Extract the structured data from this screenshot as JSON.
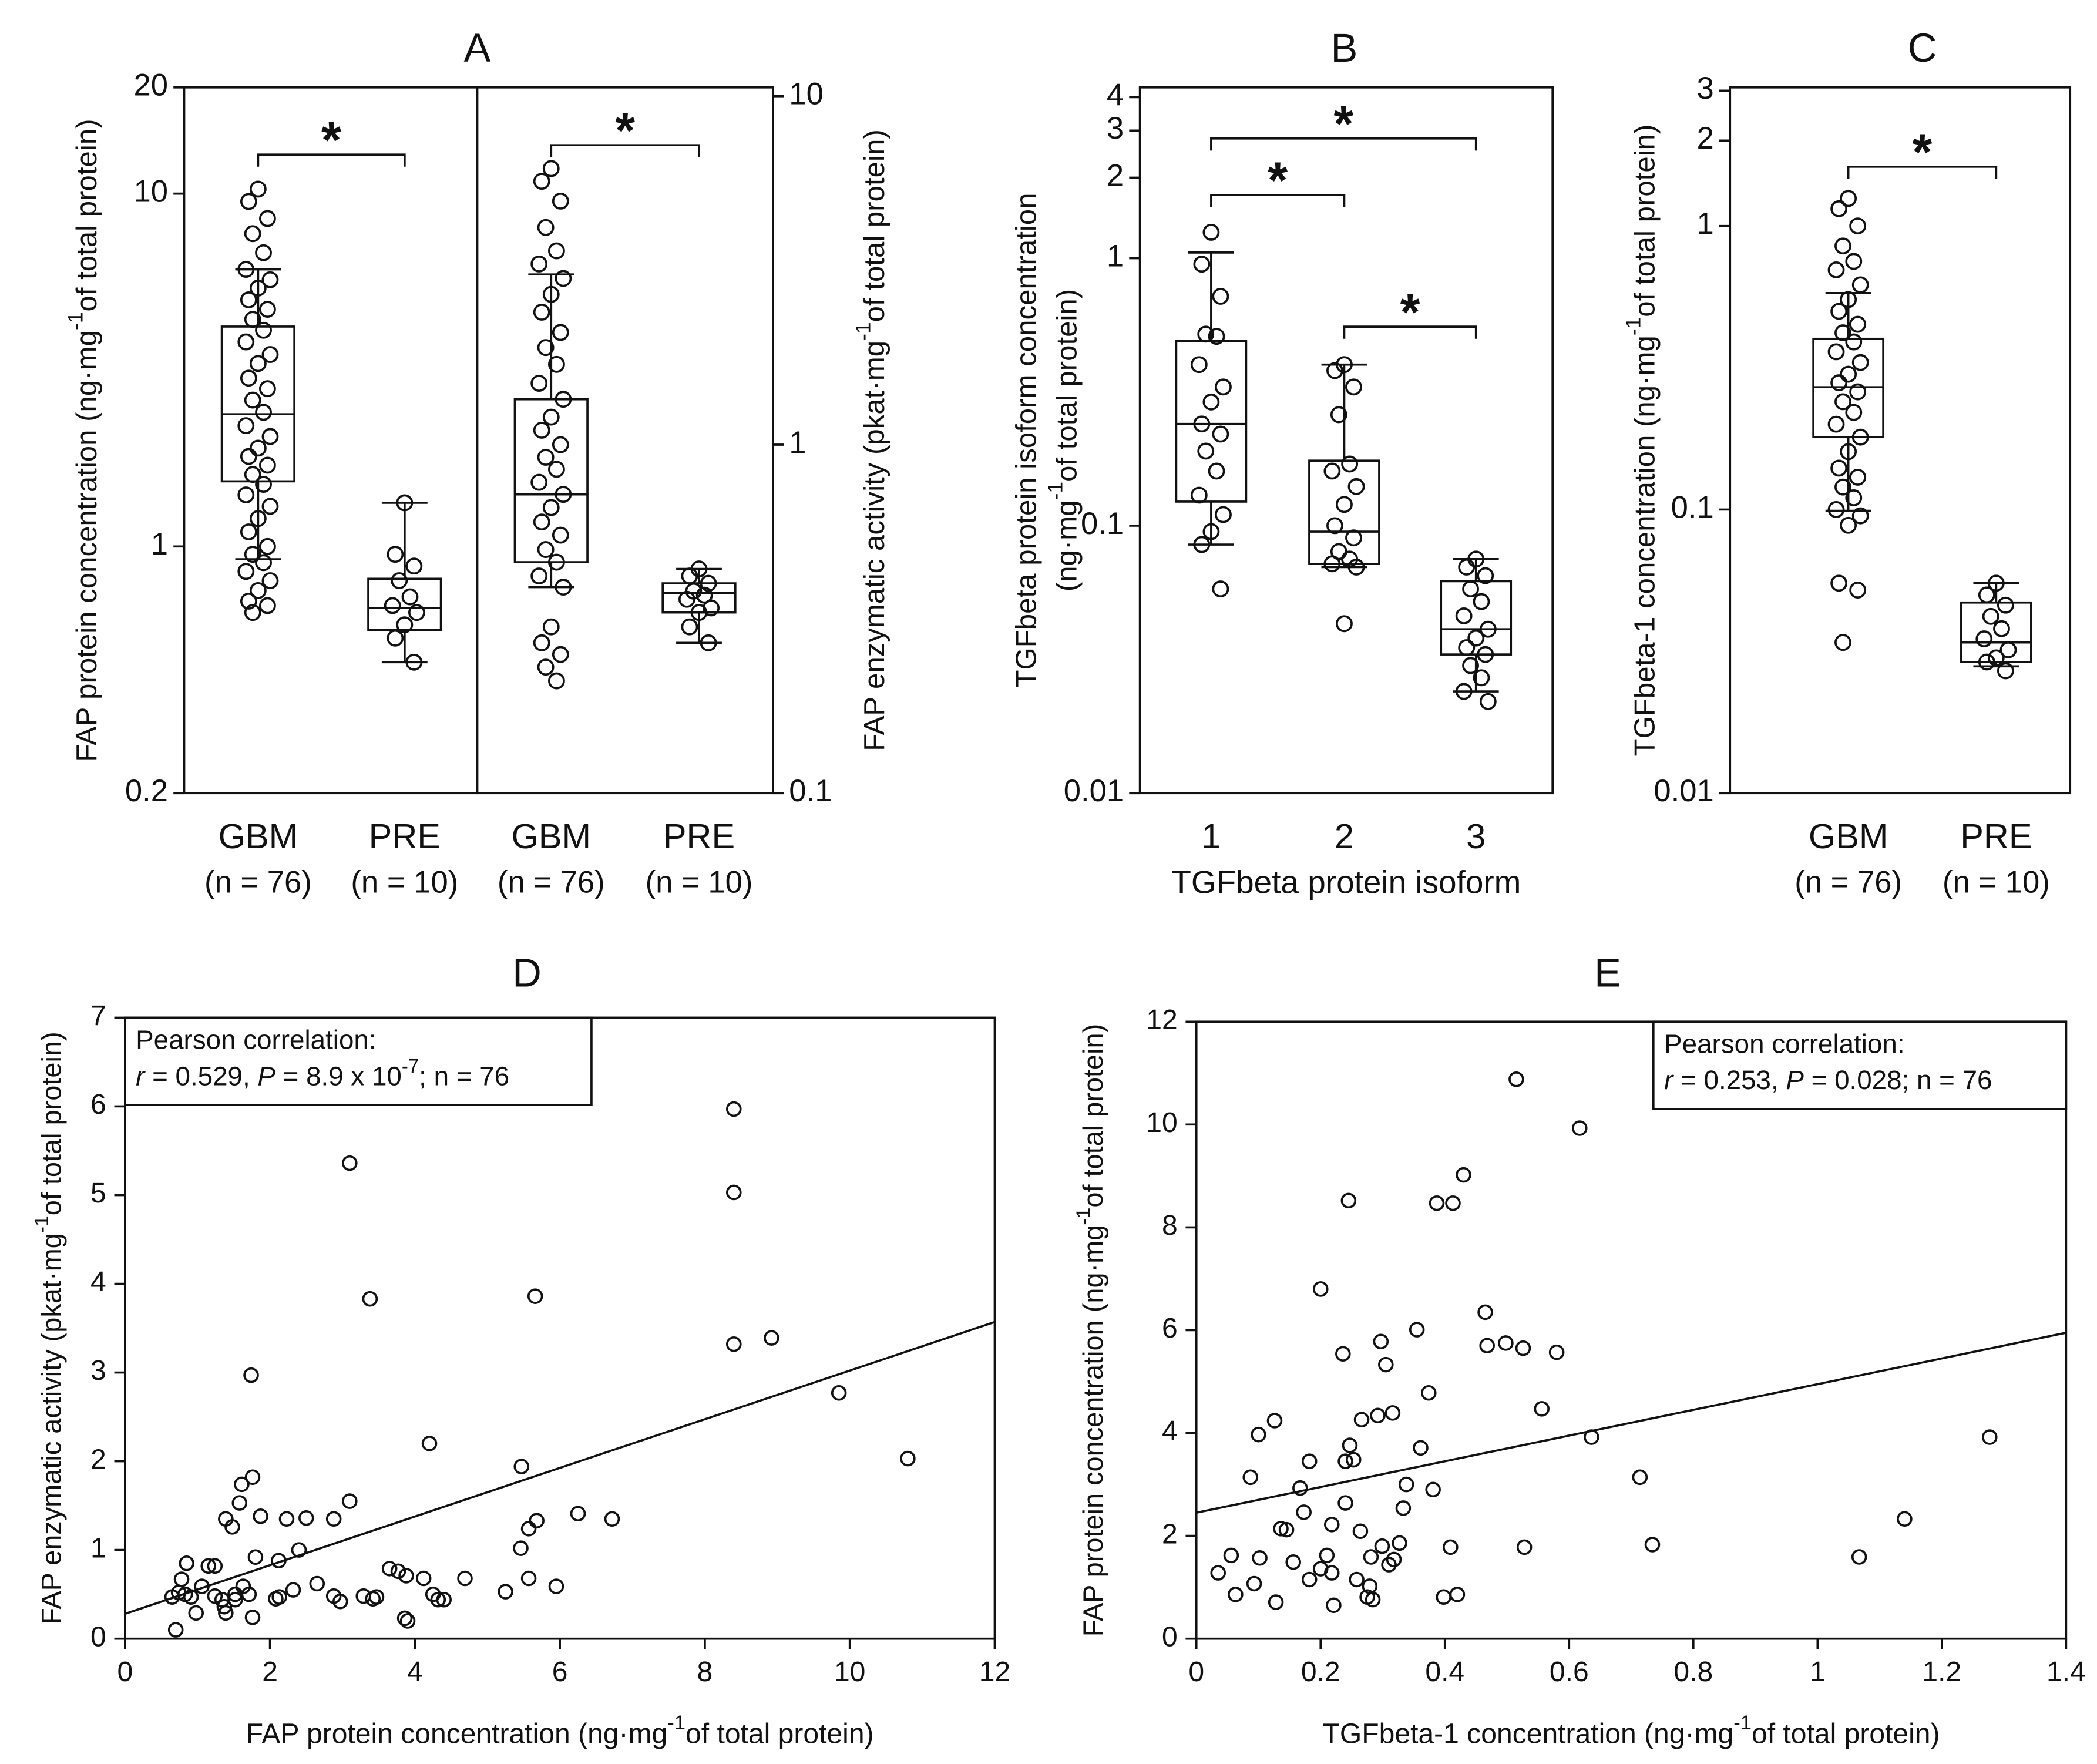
{
  "chart_data": [
    {
      "type": "box",
      "title": "A",
      "ylabel": [
        [
          "FAP protein concentration (ng·mg",
          "-1",
          "of total protein)"
        ]
      ],
      "categories": [
        "GBM",
        "PRE"
      ],
      "sublabels": [
        "(n = 76)",
        "(n = 10)"
      ],
      "log": true,
      "y_axis": "left",
      "ylim": [
        0.2,
        20
      ],
      "yticks": [
        0.2,
        1,
        10,
        20
      ],
      "boxes": [
        {
          "min": 0.92,
          "q1": 1.53,
          "median": 2.37,
          "q3": 4.2,
          "max": 6.1,
          "points": [
            10.3,
            9.5,
            8.5,
            7.7,
            6.8,
            6.1,
            5.7,
            5.4,
            5.0,
            4.7,
            4.4,
            4.1,
            3.8,
            3.5,
            3.3,
            3.0,
            2.8,
            2.6,
            2.4,
            2.2,
            2.05,
            1.9,
            1.8,
            1.7,
            1.6,
            1.5,
            1.4,
            1.3,
            1.2,
            1.1,
            1.0,
            0.95,
            0.9,
            0.85,
            0.8,
            0.75,
            0.7,
            0.68,
            0.65
          ]
        },
        {
          "min": 0.47,
          "q1": 0.58,
          "median": 0.67,
          "q3": 0.81,
          "max": 1.33,
          "points": [
            1.33,
            0.95,
            0.88,
            0.8,
            0.72,
            0.68,
            0.65,
            0.6,
            0.55,
            0.47
          ]
        }
      ],
      "annotations": [
        "*"
      ]
    },
    {
      "type": "box",
      "ylabel": [
        [
          "FAP enzymatic activity (pkat·mg",
          "-1",
          "of total protein)"
        ]
      ],
      "categories": [
        "GBM",
        "PRE"
      ],
      "sublabels": [
        "(n = 76)",
        "(n = 10)"
      ],
      "log": true,
      "y_axis": "right",
      "ylim": [
        0.1,
        10.6
      ],
      "yticks": [
        0.1,
        1,
        10
      ],
      "boxes": [
        {
          "min": 0.39,
          "q1": 0.46,
          "median": 0.72,
          "q3": 1.35,
          "max": 3.08,
          "points": [
            6.2,
            5.7,
            5.0,
            4.2,
            3.6,
            3.3,
            3.0,
            2.7,
            2.4,
            2.1,
            1.9,
            1.7,
            1.5,
            1.35,
            1.2,
            1.1,
            1.0,
            0.92,
            0.85,
            0.78,
            0.72,
            0.66,
            0.6,
            0.55,
            0.5,
            0.46,
            0.42,
            0.39,
            0.3,
            0.27,
            0.25,
            0.23,
            0.21
          ]
        },
        {
          "min": 0.27,
          "q1": 0.33,
          "median": 0.375,
          "q3": 0.4,
          "max": 0.44,
          "points": [
            0.44,
            0.42,
            0.4,
            0.38,
            0.37,
            0.36,
            0.34,
            0.33,
            0.3,
            0.27
          ]
        }
      ],
      "annotations": [
        "*"
      ]
    },
    {
      "type": "box",
      "title": "B",
      "ylabel": [
        [
          "TGFbeta protein isoform concentration"
        ],
        [
          "(ng·mg",
          "-1",
          "of total protein)"
        ]
      ],
      "xlabel": "TGFbeta protein isoform",
      "categories": [
        "1",
        "2",
        "3"
      ],
      "log": true,
      "y_axis": "left",
      "ylim": [
        0.01,
        4.35
      ],
      "yticks": [
        0.01,
        0.1,
        1,
        2,
        3,
        4
      ],
      "boxes": [
        {
          "min": 0.085,
          "q1": 0.123,
          "median": 0.24,
          "q3": 0.49,
          "max": 1.05,
          "points": [
            1.25,
            0.95,
            0.72,
            0.52,
            0.51,
            0.4,
            0.33,
            0.29,
            0.24,
            0.22,
            0.19,
            0.16,
            0.13,
            0.11,
            0.095,
            0.085,
            0.058
          ]
        },
        {
          "min": 0.07,
          "q1": 0.072,
          "median": 0.095,
          "q3": 0.175,
          "max": 0.4,
          "points": [
            0.4,
            0.38,
            0.33,
            0.26,
            0.17,
            0.16,
            0.14,
            0.12,
            0.1,
            0.09,
            0.08,
            0.075,
            0.072,
            0.07,
            0.043
          ]
        },
        {
          "min": 0.024,
          "q1": 0.033,
          "median": 0.041,
          "q3": 0.062,
          "max": 0.075,
          "points": [
            0.075,
            0.07,
            0.065,
            0.058,
            0.052,
            0.046,
            0.041,
            0.038,
            0.035,
            0.033,
            0.03,
            0.027,
            0.024,
            0.022
          ]
        }
      ],
      "annotations": [
        "*",
        "*",
        "*"
      ]
    },
    {
      "type": "box",
      "title": "C",
      "ylabel": [
        [
          "TGFbeta-1 concentration (ng·mg",
          "-1",
          "of total protein)"
        ]
      ],
      "categories": [
        "GBM",
        "PRE"
      ],
      "sublabels": [
        "(n = 76)",
        "(n = 10)"
      ],
      "log": true,
      "y_axis": "left",
      "ylim": [
        0.01,
        3.08
      ],
      "yticks": [
        0.01,
        0.1,
        1,
        2,
        3
      ],
      "boxes": [
        {
          "min": 0.099,
          "q1": 0.18,
          "median": 0.27,
          "q3": 0.4,
          "max": 0.58,
          "points": [
            1.25,
            1.15,
            1.0,
            0.85,
            0.75,
            0.7,
            0.62,
            0.55,
            0.5,
            0.45,
            0.42,
            0.39,
            0.36,
            0.33,
            0.3,
            0.28,
            0.26,
            0.24,
            0.22,
            0.2,
            0.18,
            0.16,
            0.14,
            0.13,
            0.12,
            0.11,
            0.1,
            0.095,
            0.088,
            0.055,
            0.052,
            0.034
          ]
        },
        {
          "min": 0.028,
          "q1": 0.029,
          "median": 0.034,
          "q3": 0.047,
          "max": 0.055,
          "points": [
            0.055,
            0.05,
            0.046,
            0.042,
            0.038,
            0.035,
            0.032,
            0.03,
            0.029,
            0.027
          ]
        }
      ],
      "annotations": [
        "*"
      ]
    },
    {
      "type": "scatter",
      "title": "D",
      "xlabel": [
        "FAP protein concentration (ng·mg",
        "-1",
        "of total protein)"
      ],
      "ylabel": [
        [
          "FAP enzymatic activity (pkat·mg",
          "-1",
          "of total protein)"
        ]
      ],
      "xlim": [
        0,
        12
      ],
      "xticks": [
        0,
        2,
        4,
        6,
        8,
        10,
        12
      ],
      "ylim": [
        0,
        7
      ],
      "yticks": [
        0,
        1,
        2,
        3,
        4,
        5,
        6,
        7
      ],
      "x": [
        3.1,
        8.4,
        8.4,
        8.4,
        8.92,
        3.38,
        5.66,
        1.74,
        9.85,
        10.8,
        4.2,
        5.47,
        1.76,
        1.61,
        1.58,
        3.1,
        6.25,
        6.72,
        5.68,
        5.57,
        5.46,
        1.39,
        1.48,
        1.87,
        2.23,
        2.5,
        2.88,
        2.12,
        1.8,
        2.4,
        0.85,
        1.15,
        1.24,
        0.78,
        3.65,
        3.77,
        4.12,
        3.88,
        4.69,
        2.65,
        5.57,
        5.95,
        5.25,
        4.25,
        3.29,
        3.42,
        3.47,
        4.32,
        4.4,
        2.88,
        2.97,
        2.13,
        2.08,
        2.32,
        1.71,
        1.52,
        1.63,
        1.06,
        0.65,
        0.83,
        0.91,
        1.24,
        1.37,
        1.52,
        0.98,
        1.39,
        1.76,
        3.86,
        3.9,
        0.7,
        0.74,
        1.34
      ],
      "values": [
        5.36,
        5.97,
        5.03,
        3.32,
        3.39,
        3.83,
        3.86,
        2.97,
        2.77,
        2.03,
        2.2,
        1.94,
        1.82,
        1.74,
        1.53,
        1.55,
        1.41,
        1.35,
        1.33,
        1.24,
        1.02,
        1.35,
        1.26,
        1.38,
        1.35,
        1.36,
        1.35,
        0.88,
        0.92,
        1.0,
        0.85,
        0.82,
        0.82,
        0.67,
        0.79,
        0.76,
        0.68,
        0.71,
        0.68,
        0.62,
        0.68,
        0.59,
        0.53,
        0.5,
        0.48,
        0.45,
        0.47,
        0.44,
        0.44,
        0.48,
        0.42,
        0.47,
        0.45,
        0.55,
        0.5,
        0.5,
        0.59,
        0.59,
        0.47,
        0.5,
        0.47,
        0.48,
        0.36,
        0.44,
        0.29,
        0.29,
        0.24,
        0.23,
        0.2,
        0.1,
        0.52,
        0.44
      ],
      "fit_line": {
        "x": [
          0,
          12
        ],
        "values": [
          0.28,
          3.57
        ]
      },
      "annotation": [
        [
          {
            "text": "Pearson correlation:"
          }
        ],
        [
          {
            "text": "r",
            "italic": true
          },
          {
            "text": " = 0.529, "
          },
          {
            "text": "P",
            "italic": true
          },
          {
            "text": " = 8.9 x 10"
          },
          {
            "text": "-7",
            "sup": true
          },
          {
            "text": "; n = 76"
          }
        ]
      ]
    },
    {
      "type": "scatter",
      "title": "E",
      "xlabel": [
        "TGFbeta-1 concentration (ng·mg",
        "-1",
        "of total protein)"
      ],
      "ylabel": [
        [
          "FAP protein concentration (ng·mg",
          "-1",
          "of total protein)"
        ]
      ],
      "xlim": [
        0,
        1.4
      ],
      "xticks": [
        0,
        0.2,
        0.4,
        0.6,
        0.8,
        1,
        1.2,
        1.4
      ],
      "ylim": [
        0,
        12
      ],
      "yticks": [
        0,
        2,
        4,
        6,
        8,
        10,
        12
      ],
      "x": [
        0.515,
        0.617,
        0.245,
        0.43,
        0.387,
        0.413,
        0.2,
        0.465,
        0.355,
        0.297,
        0.468,
        0.498,
        0.526,
        0.58,
        0.236,
        0.305,
        0.374,
        0.556,
        0.316,
        0.292,
        0.266,
        0.126,
        0.1,
        0.636,
        1.277,
        0.247,
        0.361,
        0.182,
        0.24,
        0.253,
        0.087,
        0.714,
        0.338,
        0.167,
        0.381,
        0.333,
        0.173,
        0.24,
        0.218,
        1.14,
        0.136,
        0.145,
        0.264,
        0.327,
        0.299,
        0.409,
        0.528,
        0.734,
        0.056,
        1.067,
        0.21,
        0.281,
        0.318,
        0.31,
        0.102,
        0.156,
        0.2,
        0.182,
        0.218,
        0.258,
        0.035,
        0.063,
        0.093,
        0.279,
        0.275,
        0.284,
        0.221,
        0.128,
        0.398,
        0.42
      ],
      "values": [
        10.88,
        9.93,
        8.52,
        9.02,
        8.47,
        8.47,
        6.8,
        6.35,
        6.01,
        5.78,
        5.7,
        5.75,
        5.65,
        5.57,
        5.54,
        5.33,
        4.78,
        4.47,
        4.39,
        4.34,
        4.26,
        4.24,
        3.97,
        3.92,
        3.92,
        3.76,
        3.71,
        3.45,
        3.45,
        3.48,
        3.14,
        3.14,
        3.0,
        2.93,
        2.9,
        2.54,
        2.46,
        2.64,
        2.22,
        2.33,
        2.14,
        2.12,
        2.09,
        1.86,
        1.8,
        1.78,
        1.78,
        1.83,
        1.62,
        1.59,
        1.62,
        1.59,
        1.54,
        1.44,
        1.57,
        1.49,
        1.36,
        1.15,
        1.28,
        1.15,
        1.28,
        0.86,
        1.07,
        1.02,
        0.81,
        0.76,
        0.65,
        0.71,
        0.81,
        0.86
      ],
      "fit_line": {
        "x": [
          0,
          1.4
        ],
        "values": [
          2.45,
          5.95
        ]
      },
      "annotation": [
        [
          {
            "text": "Pearson correlation:"
          }
        ],
        [
          {
            "text": "r",
            "italic": true
          },
          {
            "text": " = 0.253, "
          },
          {
            "text": "P",
            "italic": true
          },
          {
            "text": " = 0.028; n = 76"
          }
        ]
      ]
    }
  ]
}
